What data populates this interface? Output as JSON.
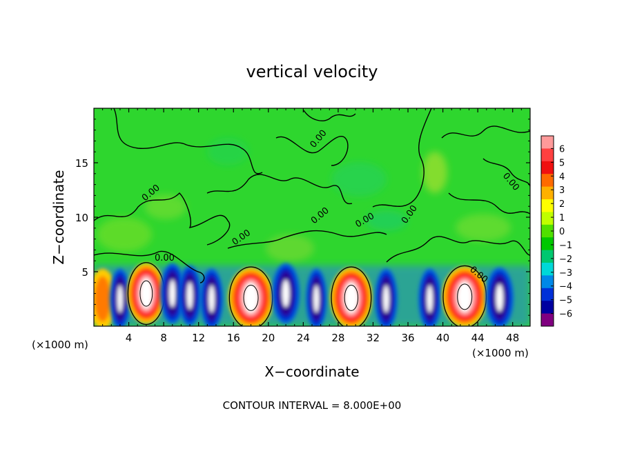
{
  "chart_data": {
    "type": "heatmap",
    "title": "vertical velocity",
    "xlabel": "X−coordinate",
    "ylabel": "Z−coordinate",
    "x_unit_left": "(×1000 m)",
    "x_unit_right": "(×1000 m)",
    "footer": "CONTOUR INTERVAL = 8.000E+00",
    "xlim": [
      0,
      50
    ],
    "ylim": [
      0,
      20
    ],
    "x_ticks": [
      4,
      8,
      12,
      16,
      20,
      24,
      28,
      32,
      36,
      40,
      44,
      48
    ],
    "y_ticks": [
      5,
      10,
      15
    ],
    "x_tick_labels": [
      "4",
      "8",
      "12",
      "16",
      "20",
      "24",
      "28",
      "32",
      "36",
      "40",
      "44",
      "48"
    ],
    "y_tick_labels": [
      "5",
      "10",
      "15"
    ],
    "colorbar": {
      "range": [
        -6,
        6
      ],
      "tick_labels": [
        "6",
        "5",
        "4",
        "3",
        "2",
        "1",
        "0",
        "−1",
        "−2",
        "−3",
        "−4",
        "−5",
        "−6"
      ],
      "colors": [
        "#ff9a9a",
        "#ff4040",
        "#f01010",
        "#ff6a00",
        "#ffb000",
        "#ffff00",
        "#c0ff00",
        "#50e000",
        "#00c800",
        "#00c870",
        "#00d8d8",
        "#0088e8",
        "#0030d8",
        "#0000a0",
        "#800080"
      ]
    },
    "contour_labels": [
      "0.00",
      "0.00",
      "0.00",
      "0.00",
      "0.00",
      "0.00",
      "0.00",
      "0.00",
      "0.00"
    ],
    "cells": [
      {
        "x": 1.0,
        "z": 2.5,
        "w": 1.6,
        "type": "updraft-weak",
        "value": 3
      },
      {
        "x": 3.0,
        "z": 2.5,
        "w": 1.2,
        "type": "downdraft",
        "value": -5
      },
      {
        "x": 6.0,
        "z": 3.0,
        "w": 2.2,
        "type": "updraft",
        "value": 6
      },
      {
        "x": 9.0,
        "z": 3.0,
        "w": 1.4,
        "type": "downdraft",
        "value": -5
      },
      {
        "x": 11.0,
        "z": 2.8,
        "w": 1.3,
        "type": "downdraft",
        "value": -6
      },
      {
        "x": 13.5,
        "z": 2.5,
        "w": 1.3,
        "type": "downdraft",
        "value": -6
      },
      {
        "x": 18.0,
        "z": 2.6,
        "w": 2.6,
        "type": "updraft",
        "value": 6
      },
      {
        "x": 22.0,
        "z": 3.0,
        "w": 1.6,
        "type": "downdraft",
        "value": -6
      },
      {
        "x": 25.5,
        "z": 2.5,
        "w": 1.2,
        "type": "downdraft",
        "value": -5
      },
      {
        "x": 29.5,
        "z": 2.6,
        "w": 2.4,
        "type": "updraft",
        "value": 6
      },
      {
        "x": 33.5,
        "z": 2.5,
        "w": 1.3,
        "type": "downdraft",
        "value": -5
      },
      {
        "x": 38.5,
        "z": 2.5,
        "w": 1.3,
        "type": "downdraft",
        "value": -6
      },
      {
        "x": 42.5,
        "z": 2.7,
        "w": 2.6,
        "type": "updraft",
        "value": 6
      },
      {
        "x": 46.5,
        "z": 2.6,
        "w": 1.6,
        "type": "downdraft",
        "value": -6
      }
    ]
  }
}
